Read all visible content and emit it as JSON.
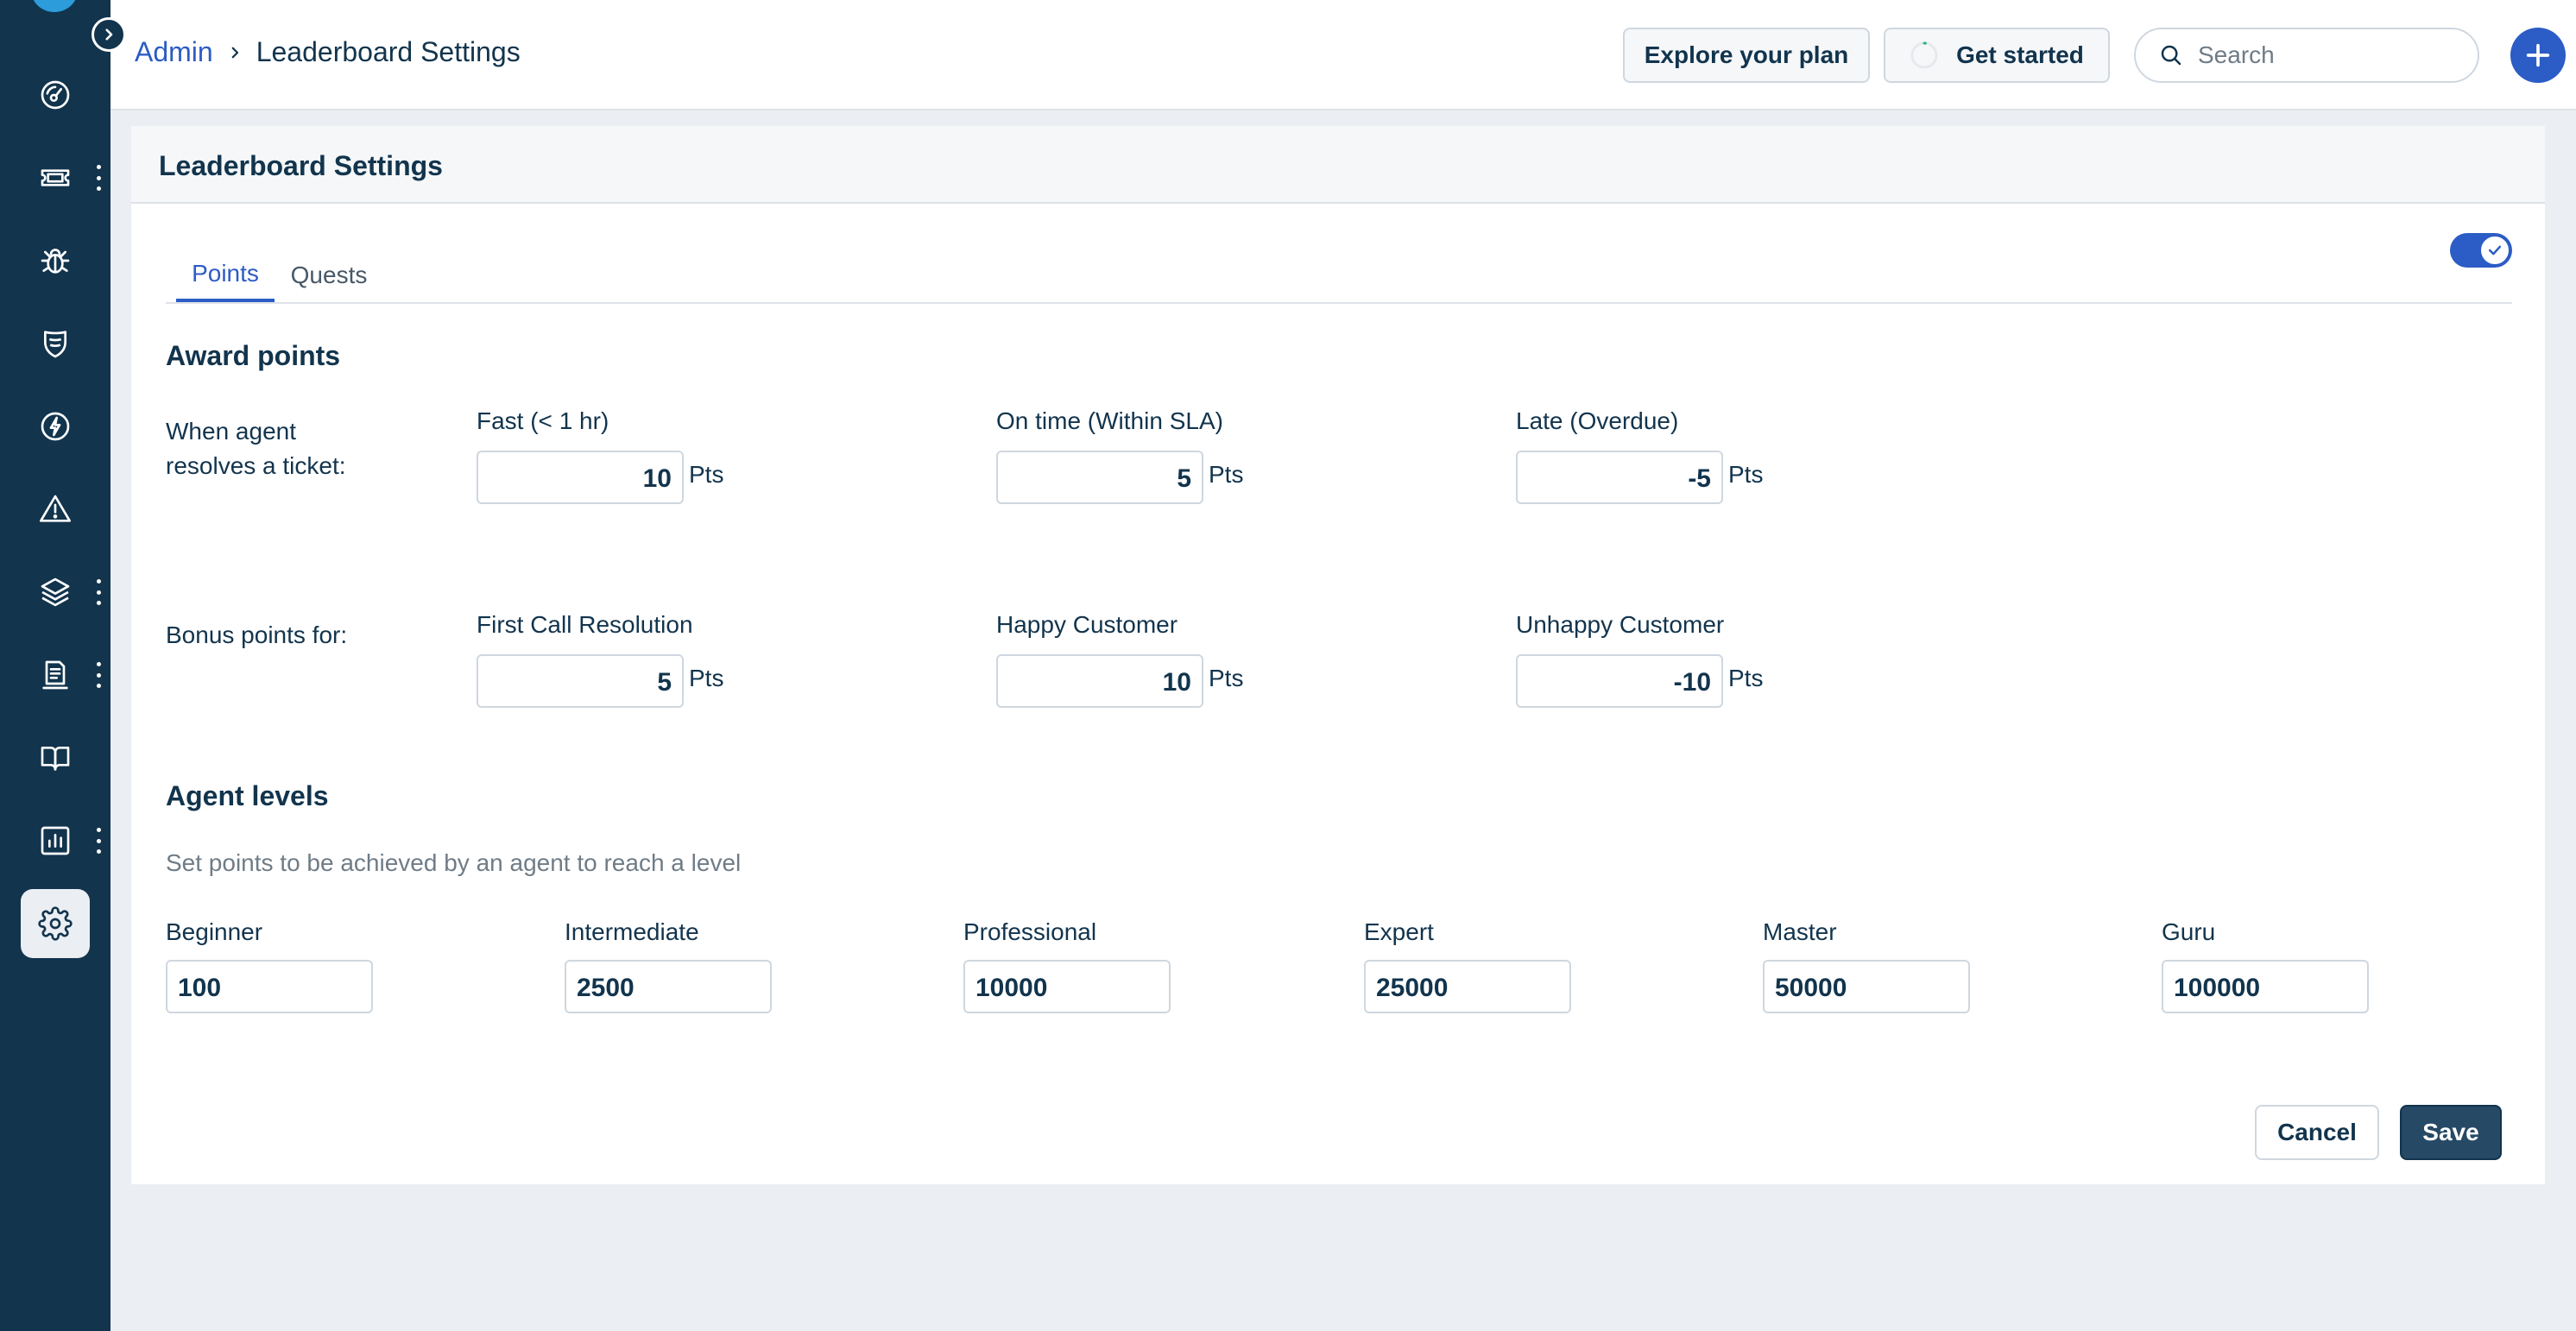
{
  "colors": {
    "sidebar_bg": "#12344d",
    "accent": "#2c5cc5",
    "page_bg": "#ebeef3",
    "primary_button": "#264966"
  },
  "sidebar": {
    "expand_icon": "chevron-right-icon",
    "items": [
      {
        "icon": "dashboard-gauge-icon",
        "has_menu": false
      },
      {
        "icon": "ticket-icon",
        "has_menu": true
      },
      {
        "icon": "bug-icon",
        "has_menu": false
      },
      {
        "icon": "shield-icon",
        "has_menu": false
      },
      {
        "icon": "lightning-icon",
        "has_menu": false
      },
      {
        "icon": "warning-icon",
        "has_menu": false
      },
      {
        "icon": "layers-icon",
        "has_menu": true
      },
      {
        "icon": "document-icon",
        "has_menu": true
      },
      {
        "icon": "book-icon",
        "has_menu": false
      },
      {
        "icon": "analytics-icon",
        "has_menu": true
      },
      {
        "icon": "gear-icon",
        "has_menu": false,
        "active": true
      }
    ]
  },
  "header": {
    "breadcrumb_root": "Admin",
    "breadcrumb_current": "Leaderboard Settings",
    "explore_label": "Explore your plan",
    "get_started_label": "Get started",
    "search_placeholder": "Search",
    "search_value": ""
  },
  "card": {
    "title": "Leaderboard Settings",
    "tabs": [
      {
        "label": "Points",
        "active": true
      },
      {
        "label": "Quests",
        "active": false
      }
    ],
    "toggle_on": true
  },
  "award": {
    "title": "Award points",
    "resolve_label_line1": "When agent",
    "resolve_label_line2": "resolves a ticket:",
    "resolve_fields": [
      {
        "label": "Fast (< 1 hr)",
        "value": "10",
        "unit": "Pts"
      },
      {
        "label": "On time (Within SLA)",
        "value": "5",
        "unit": "Pts"
      },
      {
        "label": "Late (Overdue)",
        "value": "-5",
        "unit": "Pts"
      }
    ],
    "bonus_label": "Bonus points for:",
    "bonus_fields": [
      {
        "label": "First Call Resolution",
        "value": "5",
        "unit": "Pts"
      },
      {
        "label": "Happy Customer",
        "value": "10",
        "unit": "Pts"
      },
      {
        "label": "Unhappy Customer",
        "value": "-10",
        "unit": "Pts"
      }
    ]
  },
  "levels": {
    "title": "Agent levels",
    "description": "Set points to be achieved by an agent to reach a level",
    "items": [
      {
        "label": "Beginner",
        "value": "100"
      },
      {
        "label": "Intermediate",
        "value": "2500"
      },
      {
        "label": "Professional",
        "value": "10000"
      },
      {
        "label": "Expert",
        "value": "25000"
      },
      {
        "label": "Master",
        "value": "50000"
      },
      {
        "label": "Guru",
        "value": "100000"
      }
    ]
  },
  "footer": {
    "cancel_label": "Cancel",
    "save_label": "Save"
  }
}
